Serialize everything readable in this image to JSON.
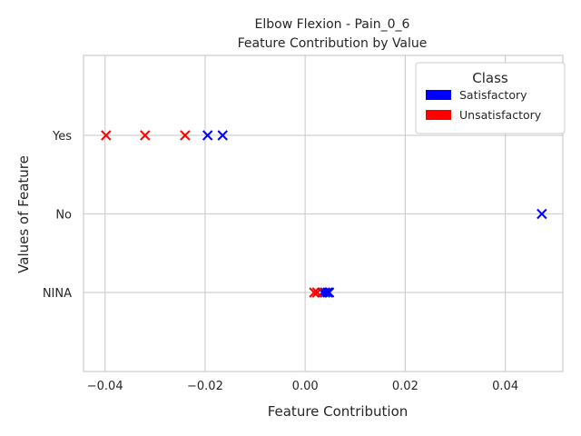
{
  "chart_data": {
    "type": "scatter",
    "title": "Elbow Flexion - Pain_0_6",
    "subtitle": "Feature Contribution by Value",
    "xlabel": "Feature Contribution",
    "ylabel": "Values of Feature",
    "xlim": [
      -0.0443,
      0.0515
    ],
    "x_ticks": [
      -0.04,
      -0.02,
      0.0,
      0.02,
      0.04
    ],
    "x_tick_labels": [
      "−0.04",
      "−0.02",
      "0.00",
      "0.02",
      "0.04"
    ],
    "categories": [
      "NINA",
      "No",
      "Yes"
    ],
    "grid": true,
    "marker": "x",
    "legend": {
      "title": "Class",
      "placement": "top-right",
      "entries": [
        {
          "name": "Satisfactory",
          "color": "#0000ff"
        },
        {
          "name": "Unsatisfactory",
          "color": "#ff0000"
        }
      ]
    },
    "series": [
      {
        "name": "Satisfactory",
        "color": "#0000ff",
        "points": [
          {
            "x": -0.0195,
            "y": "Yes"
          },
          {
            "x": -0.0165,
            "y": "Yes"
          },
          {
            "x": 0.0473,
            "y": "No"
          },
          {
            "x": 0.0035,
            "y": "NINA"
          },
          {
            "x": 0.004,
            "y": "NINA"
          },
          {
            "x": 0.0045,
            "y": "NINA"
          },
          {
            "x": 0.0048,
            "y": "NINA"
          }
        ]
      },
      {
        "name": "Unsatisfactory",
        "color": "#ff0000",
        "points": [
          {
            "x": -0.0398,
            "y": "Yes"
          },
          {
            "x": -0.032,
            "y": "Yes"
          },
          {
            "x": -0.024,
            "y": "Yes"
          },
          {
            "x": 0.0018,
            "y": "NINA"
          },
          {
            "x": 0.0024,
            "y": "NINA"
          }
        ]
      }
    ]
  }
}
